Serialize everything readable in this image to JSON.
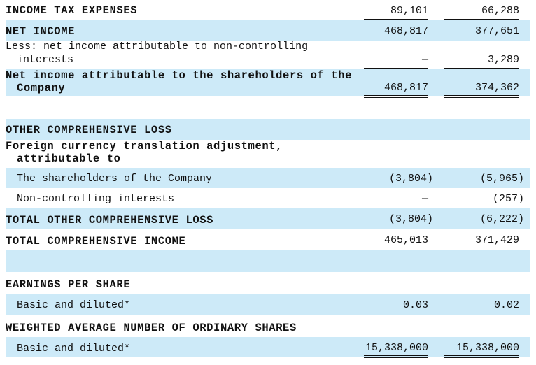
{
  "rows": {
    "income_tax": {
      "label": "INCOME TAX EXPENSES",
      "v1": "89,101",
      "v2": "66,288"
    },
    "net_income": {
      "label": "NET INCOME",
      "v1": "468,817",
      "v2": "377,651"
    },
    "less_nci": {
      "label1": "Less: net income attributable to non-controlling",
      "label2": "interests",
      "v1": "—",
      "v2": "3,289"
    },
    "ni_shareholders": {
      "label1": "Net income attributable to the shareholders of the",
      "label2": "Company",
      "v1": "468,817",
      "v2": "374,362"
    },
    "ocl_header": {
      "label": "OTHER COMPREHENSIVE LOSS"
    },
    "fx_header": {
      "label1": "Foreign currency translation adjustment,",
      "label2": "attributable to"
    },
    "fx_shareholders": {
      "label": "The shareholders of the Company",
      "v1": "(3,804)",
      "v2": "(5,965)"
    },
    "fx_nci": {
      "label": "Non-controlling interests",
      "v1": "—",
      "v2": "(257)"
    },
    "total_ocl": {
      "label": "TOTAL OTHER COMPREHENSIVE LOSS",
      "v1": "(3,804)",
      "v2": "(6,222)"
    },
    "total_ci": {
      "label": "TOTAL COMPREHENSIVE INCOME",
      "v1": "465,013",
      "v2": "371,429"
    },
    "eps_header": {
      "label": "EARNINGS PER SHARE"
    },
    "eps_basic": {
      "label": "Basic and diluted*",
      "v1": "0.03",
      "v2": "0.02"
    },
    "shares_header": {
      "label": "WEIGHTED AVERAGE NUMBER OF ORDINARY SHARES"
    },
    "shares_basic": {
      "label": "Basic and diluted*",
      "v1": "15,338,000",
      "v2": "15,338,000"
    }
  },
  "colors": {
    "band": "#cdeaf8"
  }
}
